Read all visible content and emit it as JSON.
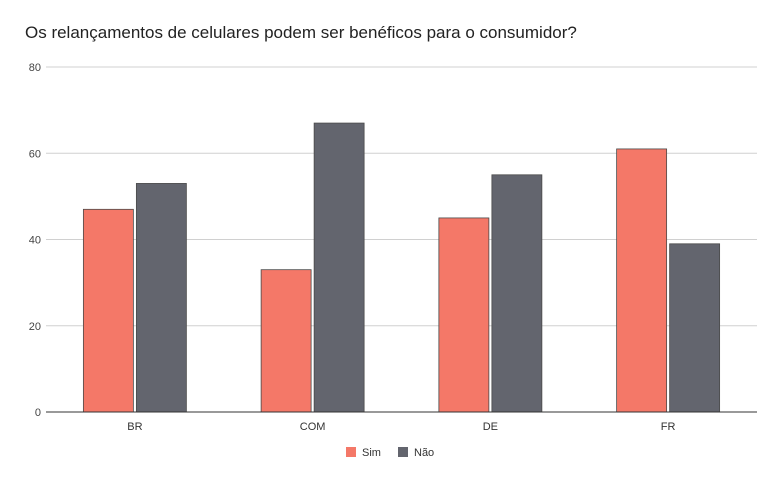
{
  "chart_data": {
    "type": "bar",
    "title": "Os relançamentos de celulares podem ser benéficos para o consumidor?",
    "categories": [
      "BR",
      "COM",
      "DE",
      "FR"
    ],
    "series": [
      {
        "name": "Sim",
        "values": [
          47,
          33,
          45,
          61
        ],
        "color": "#F47868"
      },
      {
        "name": "Não",
        "values": [
          53,
          67,
          55,
          39
        ],
        "color": "#63656E"
      }
    ],
    "yticks": [
      "0",
      "20",
      "40",
      "60",
      "80"
    ],
    "ylim": [
      0,
      80
    ],
    "grid": true,
    "legend_position": "bottom-center"
  }
}
